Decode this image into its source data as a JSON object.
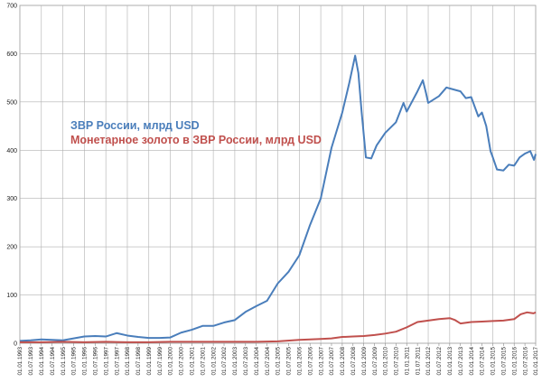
{
  "chart_data": {
    "type": "line",
    "title": "",
    "xlabel": "",
    "ylabel": "",
    "ylim": [
      0,
      700
    ],
    "yticks": [
      0,
      100,
      200,
      300,
      400,
      500,
      600,
      700
    ],
    "grid": true,
    "legend_position": "left-middle",
    "x_tick_labels": [
      "01.01.1993",
      "01.07.1993",
      "01.01.1994",
      "01.07.1994",
      "01.01.1995",
      "01.07.1995",
      "01.01.1996",
      "01.07.1996",
      "01.01.1997",
      "01.07.1997",
      "01.01.1998",
      "01.07.1998",
      "01.01.1999",
      "01.07.1999",
      "01.01.2000",
      "01.07.2000",
      "01.01.2001",
      "01.07.2001",
      "01.01.2002",
      "01.07.2002",
      "01.01.2003",
      "01.07.2003",
      "01.01.2004",
      "01.07.2004",
      "01.01.2005",
      "01.07.2005",
      "01.01.2006",
      "01.07.2006",
      "01.01.2007",
      "01.07.2007",
      "01.01.2008",
      "01.07.2008",
      "01.01.2009",
      "01.07.2009",
      "01.01.2010",
      "01.07.2010",
      "01.01.2011",
      "01.07.2011",
      "01.01.2012",
      "01.07.2012",
      "01.01.2013",
      "01.07.2013",
      "01.01.2014",
      "01.07.2014",
      "01.01.2015",
      "01.07.2015",
      "01.01.2016",
      "01.07.2016",
      "01.01.2017"
    ],
    "series": [
      {
        "name": "ЗВР России, млрд USD",
        "color": "#4a7ebb",
        "points": [
          [
            1993.0,
            5
          ],
          [
            1993.5,
            6
          ],
          [
            1994.0,
            8
          ],
          [
            1994.5,
            7
          ],
          [
            1995.0,
            6
          ],
          [
            1995.5,
            10
          ],
          [
            1996.0,
            14
          ],
          [
            1996.5,
            15
          ],
          [
            1997.0,
            14
          ],
          [
            1997.5,
            21
          ],
          [
            1998.0,
            16
          ],
          [
            1998.5,
            13
          ],
          [
            1999.0,
            11
          ],
          [
            1999.5,
            11
          ],
          [
            2000.0,
            12
          ],
          [
            2000.5,
            22
          ],
          [
            2001.0,
            28
          ],
          [
            2001.5,
            36
          ],
          [
            2002.0,
            36
          ],
          [
            2002.5,
            43
          ],
          [
            2003.0,
            48
          ],
          [
            2003.5,
            65
          ],
          [
            2004.0,
            77
          ],
          [
            2004.5,
            88
          ],
          [
            2005.0,
            124
          ],
          [
            2005.5,
            148
          ],
          [
            2006.0,
            182
          ],
          [
            2006.5,
            245
          ],
          [
            2007.0,
            300
          ],
          [
            2007.5,
            405
          ],
          [
            2008.0,
            478
          ],
          [
            2008.33,
            540
          ],
          [
            2008.6,
            596
          ],
          [
            2008.75,
            560
          ],
          [
            2008.9,
            480
          ],
          [
            2009.1,
            385
          ],
          [
            2009.35,
            383
          ],
          [
            2009.6,
            410
          ],
          [
            2010.0,
            436
          ],
          [
            2010.5,
            458
          ],
          [
            2010.85,
            498
          ],
          [
            2011.0,
            480
          ],
          [
            2011.5,
            522
          ],
          [
            2011.75,
            545
          ],
          [
            2011.9,
            518
          ],
          [
            2012.0,
            498
          ],
          [
            2012.5,
            512
          ],
          [
            2012.85,
            530
          ],
          [
            2013.0,
            528
          ],
          [
            2013.5,
            522
          ],
          [
            2013.75,
            508
          ],
          [
            2014.0,
            510
          ],
          [
            2014.33,
            470
          ],
          [
            2014.5,
            478
          ],
          [
            2014.7,
            450
          ],
          [
            2014.9,
            398
          ],
          [
            2015.0,
            386
          ],
          [
            2015.2,
            360
          ],
          [
            2015.5,
            358
          ],
          [
            2015.75,
            370
          ],
          [
            2016.0,
            368
          ],
          [
            2016.25,
            385
          ],
          [
            2016.5,
            393
          ],
          [
            2016.75,
            398
          ],
          [
            2016.92,
            380
          ],
          [
            2017.0,
            392
          ]
        ]
      },
      {
        "name": "Монетарное золото в ЗВР России, млрд USD",
        "color": "#c0504d",
        "points": [
          [
            1993.0,
            2
          ],
          [
            1994.0,
            2
          ],
          [
            1995.0,
            3
          ],
          [
            1996.0,
            2
          ],
          [
            1997.0,
            3
          ],
          [
            1998.0,
            2
          ],
          [
            1999.0,
            2
          ],
          [
            2000.0,
            3
          ],
          [
            2001.0,
            3
          ],
          [
            2002.0,
            3
          ],
          [
            2003.0,
            3
          ],
          [
            2004.0,
            3
          ],
          [
            2005.0,
            4
          ],
          [
            2006.0,
            7
          ],
          [
            2007.0,
            9
          ],
          [
            2007.5,
            10
          ],
          [
            2008.0,
            13
          ],
          [
            2008.5,
            14
          ],
          [
            2009.0,
            15
          ],
          [
            2009.5,
            17
          ],
          [
            2010.0,
            20
          ],
          [
            2010.5,
            24
          ],
          [
            2011.0,
            33
          ],
          [
            2011.5,
            44
          ],
          [
            2012.0,
            47
          ],
          [
            2012.5,
            50
          ],
          [
            2013.0,
            52
          ],
          [
            2013.25,
            48
          ],
          [
            2013.5,
            41
          ],
          [
            2014.0,
            44
          ],
          [
            2014.5,
            45
          ],
          [
            2015.0,
            46
          ],
          [
            2015.5,
            47
          ],
          [
            2016.0,
            50
          ],
          [
            2016.3,
            60
          ],
          [
            2016.6,
            64
          ],
          [
            2016.9,
            62
          ],
          [
            2017.0,
            64
          ]
        ]
      }
    ]
  }
}
